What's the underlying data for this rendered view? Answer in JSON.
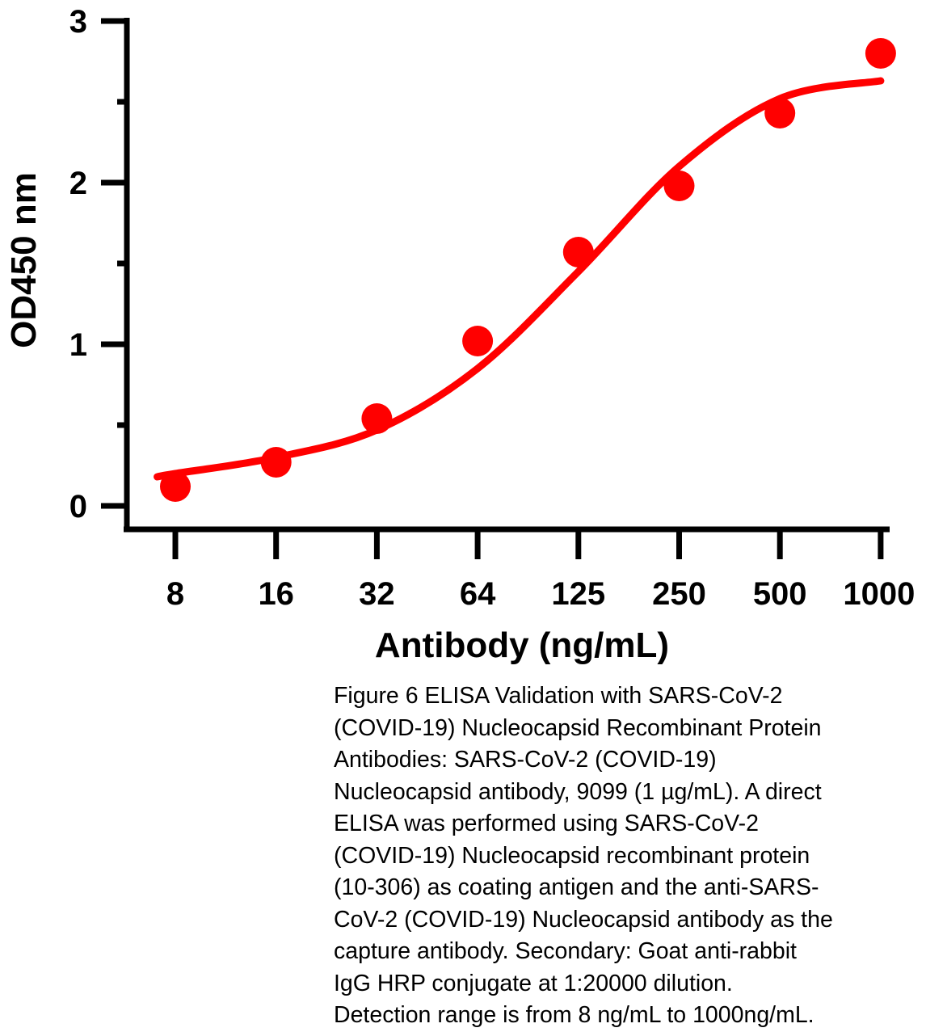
{
  "chart_data": {
    "type": "scatter",
    "x_scale": "log (categorical spacing)",
    "categories": [
      "8",
      "16",
      "32",
      "64",
      "125",
      "250",
      "500",
      "1000"
    ],
    "x": [
      8,
      16,
      32,
      64,
      125,
      250,
      500,
      1000
    ],
    "values": [
      0.12,
      0.27,
      0.54,
      1.02,
      1.57,
      1.98,
      2.43,
      2.8
    ],
    "fit_curve": {
      "x_index": [
        -0.18,
        0,
        1,
        2,
        3,
        4,
        5,
        6,
        7
      ],
      "y": [
        0.18,
        0.2,
        0.3,
        0.47,
        0.85,
        1.45,
        2.1,
        2.52,
        2.63
      ]
    },
    "xlabel": "Antibody (ng/mL)",
    "ylabel": "OD450 nm",
    "ylim": [
      0,
      3
    ],
    "yticks": [
      "0",
      "1",
      "2",
      "3"
    ],
    "grid": false,
    "color": "#ff0000"
  },
  "caption": "Figure 6 ELISA Validation with SARS-CoV-2 (COVID-19) Nucleocapsid Recombinant Protein Antibodies: SARS-CoV-2 (COVID-19) Nucleocapsid antibody, 9099 (1 µg/mL). A direct ELISA was performed using SARS-CoV-2 (COVID-19) Nucleocapsid recombinant protein (10-306) as coating antigen and the anti-SARS-CoV-2 (COVID-19) Nucleocapsid antibody as the capture antibody. Secondary: Goat anti-rabbit IgG HRP conjugate at 1:20000 dilution. Detection range is from 8 ng/mL to 1000ng/mL."
}
